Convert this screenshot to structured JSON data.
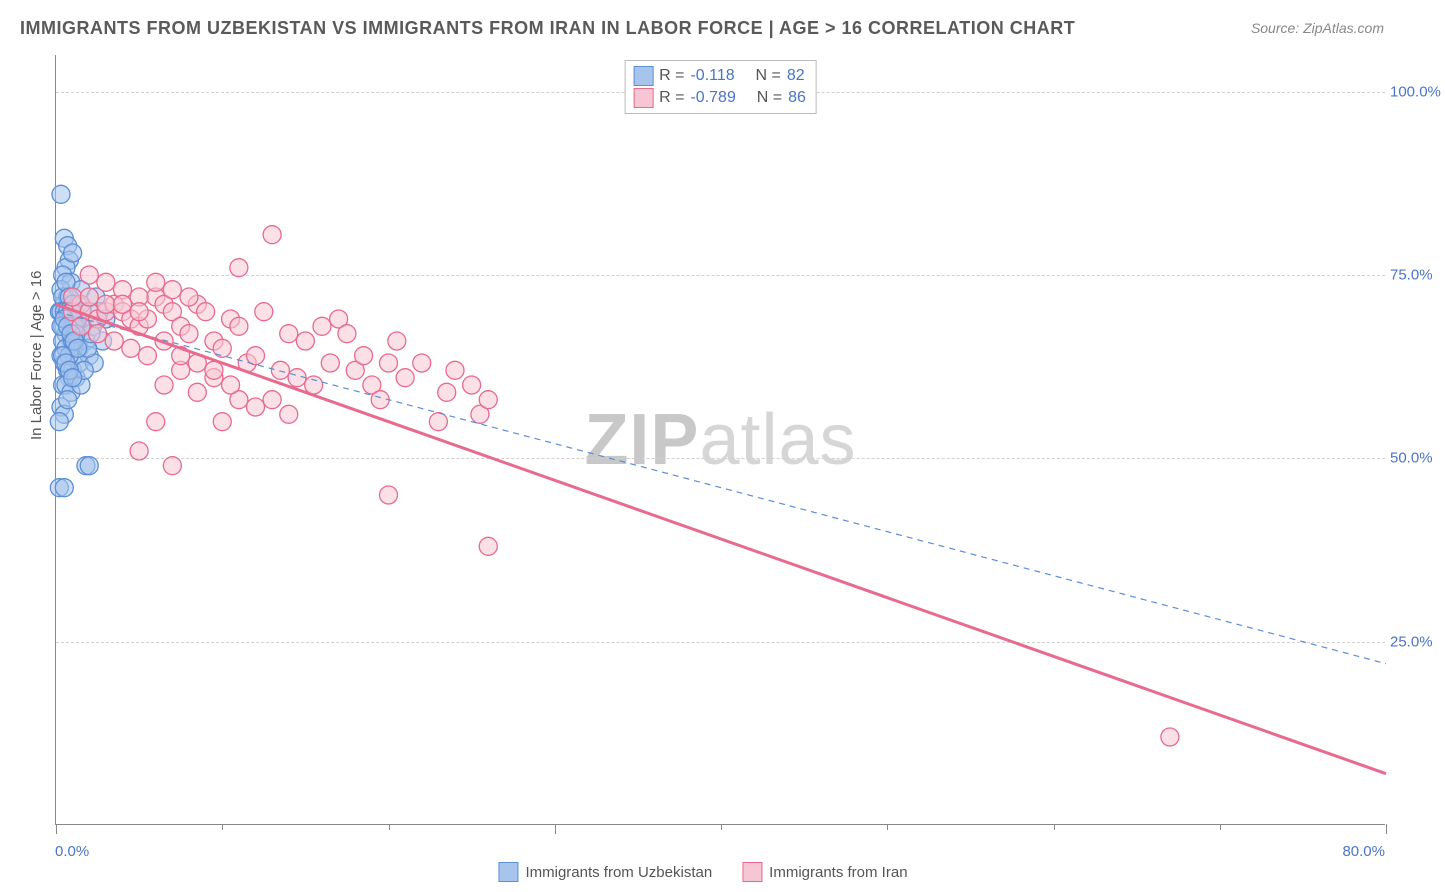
{
  "title": "IMMIGRANTS FROM UZBEKISTAN VS IMMIGRANTS FROM IRAN IN LABOR FORCE | AGE > 16 CORRELATION CHART",
  "source": "Source: ZipAtlas.com",
  "ylabel": "In Labor Force | Age > 16",
  "watermark_bold": "ZIP",
  "watermark_rest": "atlas",
  "series": [
    {
      "key": "uzbekistan",
      "name": "Immigrants from Uzbekistan",
      "fill": "#a6c4ec",
      "stroke": "#5b8fd6",
      "r_label": "R = ",
      "r_value": "-0.118",
      "n_label": "N =",
      "n_value": "82",
      "trend": {
        "x1": 0,
        "y1": 70,
        "x2": 80,
        "y2": 22,
        "dashed": true,
        "width": 1.2,
        "color": "#5b8fd6"
      },
      "points": [
        [
          0.3,
          86
        ],
        [
          0.5,
          80
        ],
        [
          0.7,
          79
        ],
        [
          0.8,
          77
        ],
        [
          0.6,
          76
        ],
        [
          0.4,
          75
        ],
        [
          0.9,
          74
        ],
        [
          1.0,
          78
        ],
        [
          0.3,
          73
        ],
        [
          0.5,
          71
        ],
        [
          0.7,
          72
        ],
        [
          0.2,
          70
        ],
        [
          0.8,
          69
        ],
        [
          1.1,
          70
        ],
        [
          1.3,
          71
        ],
        [
          1.5,
          73
        ],
        [
          0.4,
          68
        ],
        [
          0.6,
          67
        ],
        [
          0.9,
          66
        ],
        [
          1.0,
          65
        ],
        [
          0.3,
          64
        ],
        [
          0.5,
          63
        ],
        [
          0.7,
          62
        ],
        [
          0.8,
          61
        ],
        [
          0.4,
          60
        ],
        [
          0.6,
          60
        ],
        [
          0.9,
          59
        ],
        [
          1.1,
          64
        ],
        [
          1.2,
          66
        ],
        [
          1.4,
          65
        ],
        [
          1.6,
          68
        ],
        [
          1.8,
          66
        ],
        [
          0.3,
          57
        ],
        [
          0.5,
          56
        ],
        [
          0.2,
          55
        ],
        [
          0.7,
          58
        ],
        [
          1.0,
          68
        ],
        [
          1.3,
          68
        ],
        [
          1.6,
          70
        ],
        [
          2.0,
          64
        ],
        [
          2.2,
          68
        ],
        [
          2.4,
          72
        ],
        [
          2.6,
          70
        ],
        [
          2.8,
          66
        ],
        [
          3.0,
          69
        ],
        [
          1.0,
          62
        ],
        [
          1.2,
          61
        ],
        [
          1.4,
          63
        ],
        [
          0.2,
          46
        ],
        [
          0.5,
          46
        ],
        [
          1.8,
          49
        ],
        [
          2.0,
          49
        ],
        [
          2.3,
          63
        ],
        [
          1.5,
          60
        ],
        [
          1.7,
          62
        ],
        [
          1.9,
          65
        ],
        [
          2.1,
          67
        ],
        [
          0.4,
          72
        ],
        [
          0.6,
          74
        ],
        [
          0.8,
          72
        ],
        [
          1.0,
          71
        ],
        [
          0.3,
          70
        ],
        [
          0.5,
          70
        ],
        [
          0.7,
          70
        ],
        [
          0.9,
          70
        ],
        [
          1.1,
          68
        ],
        [
          1.3,
          69
        ],
        [
          0.4,
          66
        ],
        [
          0.6,
          65
        ],
        [
          0.8,
          64
        ],
        [
          1.0,
          66
        ],
        [
          1.2,
          67
        ],
        [
          0.3,
          68
        ],
        [
          0.5,
          69
        ],
        [
          0.7,
          68
        ],
        [
          0.9,
          67
        ],
        [
          1.1,
          66
        ],
        [
          1.3,
          65
        ],
        [
          0.4,
          64
        ],
        [
          0.6,
          63
        ],
        [
          0.8,
          62
        ],
        [
          1.0,
          61
        ]
      ]
    },
    {
      "key": "iran",
      "name": "Immigrants from Iran",
      "fill": "#f7c6d4",
      "stroke": "#e86a8e",
      "r_label": "R = ",
      "r_value": "-0.789",
      "n_label": "N =",
      "n_value": "86",
      "trend": {
        "x1": 0,
        "y1": 71,
        "x2": 80,
        "y2": 7,
        "dashed": false,
        "width": 3,
        "color": "#e86a8e"
      },
      "points": [
        [
          1.0,
          70
        ],
        [
          1.5,
          71
        ],
        [
          2.0,
          70
        ],
        [
          2.5,
          69
        ],
        [
          3.0,
          70
        ],
        [
          3.5,
          71
        ],
        [
          4.0,
          70
        ],
        [
          4.5,
          69
        ],
        [
          5.0,
          68
        ],
        [
          5.5,
          69
        ],
        [
          6.0,
          72
        ],
        [
          6.5,
          71
        ],
        [
          7.0,
          70
        ],
        [
          7.5,
          68
        ],
        [
          8.0,
          67
        ],
        [
          8.5,
          71
        ],
        [
          9.0,
          70
        ],
        [
          9.5,
          66
        ],
        [
          10.0,
          65
        ],
        [
          10.5,
          69
        ],
        [
          11.0,
          68
        ],
        [
          11.5,
          63
        ],
        [
          12.0,
          64
        ],
        [
          12.5,
          70
        ],
        [
          13.0,
          80.5
        ],
        [
          13.5,
          62
        ],
        [
          14.0,
          67
        ],
        [
          14.5,
          61
        ],
        [
          15.0,
          66
        ],
        [
          11.0,
          76
        ],
        [
          2.0,
          75
        ],
        [
          3.0,
          74
        ],
        [
          4.0,
          73
        ],
        [
          5.0,
          72
        ],
        [
          6.0,
          74
        ],
        [
          7.0,
          73
        ],
        [
          8.0,
          72
        ],
        [
          15.5,
          60
        ],
        [
          16.0,
          68
        ],
        [
          16.5,
          63
        ],
        [
          17.0,
          69
        ],
        [
          17.5,
          67
        ],
        [
          18.0,
          62
        ],
        [
          18.5,
          64
        ],
        [
          19.0,
          60
        ],
        [
          19.5,
          58
        ],
        [
          20.0,
          63
        ],
        [
          20.5,
          66
        ],
        [
          21.0,
          61
        ],
        [
          22.0,
          63
        ],
        [
          23.0,
          55
        ],
        [
          23.5,
          59
        ],
        [
          24.0,
          62
        ],
        [
          25.0,
          60
        ],
        [
          25.5,
          56
        ],
        [
          26.0,
          58
        ],
        [
          7.0,
          49
        ],
        [
          5.0,
          51
        ],
        [
          6.0,
          55
        ],
        [
          10.0,
          55
        ],
        [
          11.0,
          58
        ],
        [
          12.0,
          57
        ],
        [
          13.0,
          58
        ],
        [
          14.0,
          56
        ],
        [
          6.5,
          60
        ],
        [
          7.5,
          62
        ],
        [
          8.5,
          59
        ],
        [
          9.5,
          61
        ],
        [
          20.0,
          45
        ],
        [
          26.0,
          38
        ],
        [
          1.5,
          68
        ],
        [
          2.5,
          67
        ],
        [
          3.5,
          66
        ],
        [
          4.5,
          65
        ],
        [
          5.5,
          64
        ],
        [
          6.5,
          66
        ],
        [
          7.5,
          64
        ],
        [
          8.5,
          63
        ],
        [
          9.5,
          62
        ],
        [
          10.5,
          60
        ],
        [
          1.0,
          72
        ],
        [
          2.0,
          72
        ],
        [
          3.0,
          71
        ],
        [
          4.0,
          71
        ],
        [
          5.0,
          70
        ],
        [
          67.0,
          12
        ]
      ]
    }
  ],
  "axes": {
    "xmin": 0,
    "xmax": 80,
    "ymin": 0,
    "ymax": 105,
    "yticks": [
      {
        "v": 25,
        "label": "25.0%"
      },
      {
        "v": 50,
        "label": "50.0%"
      },
      {
        "v": 75,
        "label": "75.0%"
      },
      {
        "v": 100,
        "label": "100.0%"
      }
    ],
    "xticks_major": [
      0,
      30,
      80
    ],
    "xticks_minor": [
      10,
      20,
      40,
      50,
      60,
      70
    ],
    "xlabels": [
      {
        "v": 0,
        "label": "0.0%"
      },
      {
        "v": 80,
        "label": "80.0%"
      }
    ]
  },
  "marker": {
    "radius": 9,
    "fill_opacity": 0.55,
    "stroke_width": 1.3
  },
  "colors": {
    "grid": "#d0d0d0",
    "axis": "#888888",
    "label_blue": "#4a74c9"
  }
}
